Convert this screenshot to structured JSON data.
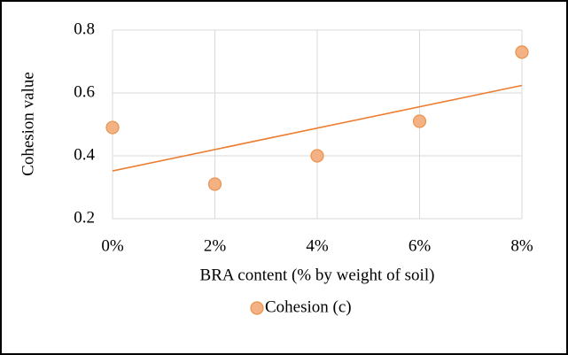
{
  "chart_data": {
    "type": "scatter",
    "x_label": "BRA content (% by weight of soil)",
    "y_label": "Cohesion value",
    "series": [
      {
        "name": "Cohesion (c)",
        "color": "#f4b183",
        "edge_color": "#e8944f",
        "x": [
          0,
          2,
          4,
          6,
          8
        ],
        "values": [
          0.49,
          0.31,
          0.4,
          0.51,
          0.73
        ]
      }
    ],
    "trendline": {
      "kind": "linear",
      "color": "#ed7d31"
    },
    "xlim": [
      0,
      8
    ],
    "xticks": [
      {
        "value": 0,
        "label": "0%"
      },
      {
        "value": 2,
        "label": "2%"
      },
      {
        "value": 4,
        "label": "4%"
      },
      {
        "value": 6,
        "label": "6%"
      },
      {
        "value": 8,
        "label": "8%"
      }
    ],
    "ylim": [
      0.2,
      0.8
    ],
    "yticks": [
      0.2,
      0.4,
      0.6,
      0.8
    ],
    "grid": true,
    "legend": "bottom"
  }
}
